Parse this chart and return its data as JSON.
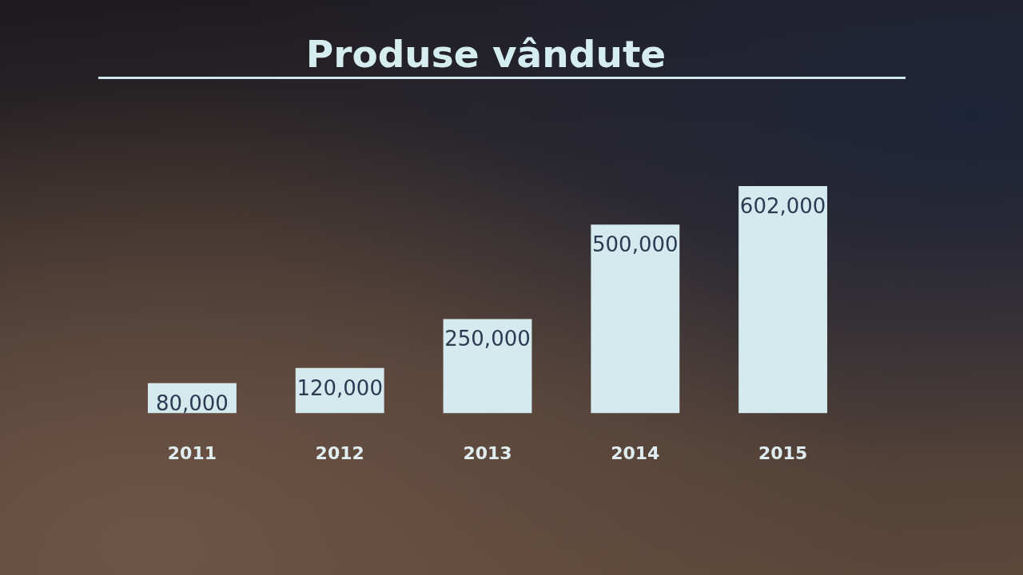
{
  "chart_data": {
    "type": "bar",
    "title": "Produse vândute",
    "categories": [
      "2011",
      "2012",
      "2013",
      "2014",
      "2015"
    ],
    "values": [
      80000,
      120000,
      250000,
      500000,
      602000
    ],
    "value_labels": [
      "80,000",
      "120,000",
      "250,000",
      "500,000",
      "602,000"
    ],
    "color": "#d4eaee",
    "tick_labels": "x"
  }
}
